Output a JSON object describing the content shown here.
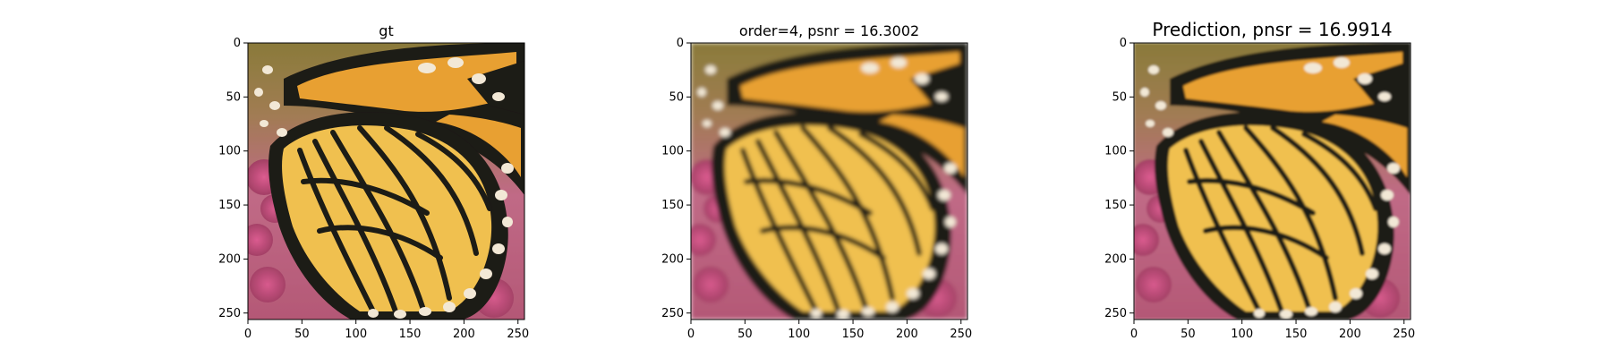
{
  "figure": {
    "panels": [
      {
        "title": "gt",
        "variant": "sharp"
      },
      {
        "title": "order=4, psnr = 16.3002",
        "variant": "blur"
      },
      {
        "title": "Prediction, pnsr = 16.9914",
        "variant": "soft"
      }
    ],
    "x_ticks": [
      "0",
      "50",
      "100",
      "150",
      "200",
      "250"
    ],
    "y_ticks": [
      "0",
      "50",
      "100",
      "150",
      "200",
      "250"
    ],
    "image_extent": [
      0,
      256
    ],
    "colors": {
      "wing_orange": "#e8a030",
      "wing_yellow": "#f0c050",
      "vein_black": "#1f1a14",
      "spot_cream": "#f2e8d6",
      "background_pink": "#c05a7a",
      "background_olive": "#8a7a3a"
    }
  }
}
